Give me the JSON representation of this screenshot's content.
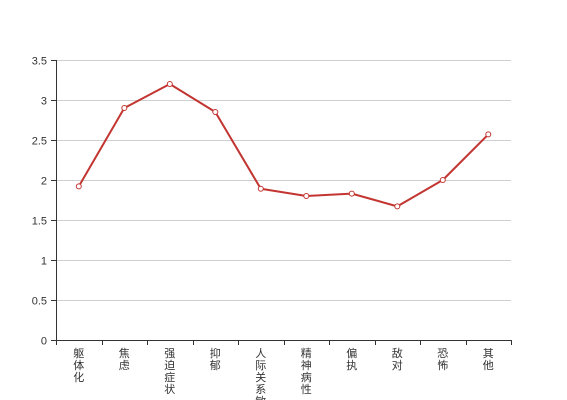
{
  "chart_data": {
    "type": "line",
    "title": "",
    "xlabel": "",
    "ylabel": "",
    "categories": [
      "躯体化",
      "焦虑",
      "强迫症状",
      "抑郁",
      "人际关系敏感",
      "精神病性",
      "偏执",
      "敌对",
      "恐怖",
      "其他"
    ],
    "series": [
      {
        "name": "",
        "values": [
          1.92,
          2.9,
          3.2,
          2.85,
          1.89,
          1.8,
          1.83,
          1.67,
          2.0,
          2.57
        ]
      }
    ],
    "ylim": [
      0,
      3.5
    ],
    "yticks": [
      "0",
      "0.5",
      "1",
      "1.5",
      "2",
      "2.5",
      "3",
      "3.5"
    ],
    "grid": true,
    "legend": "none",
    "colors": {
      "series": "#c23531",
      "axis": "#333333",
      "grid": "#cfcfcf"
    }
  }
}
